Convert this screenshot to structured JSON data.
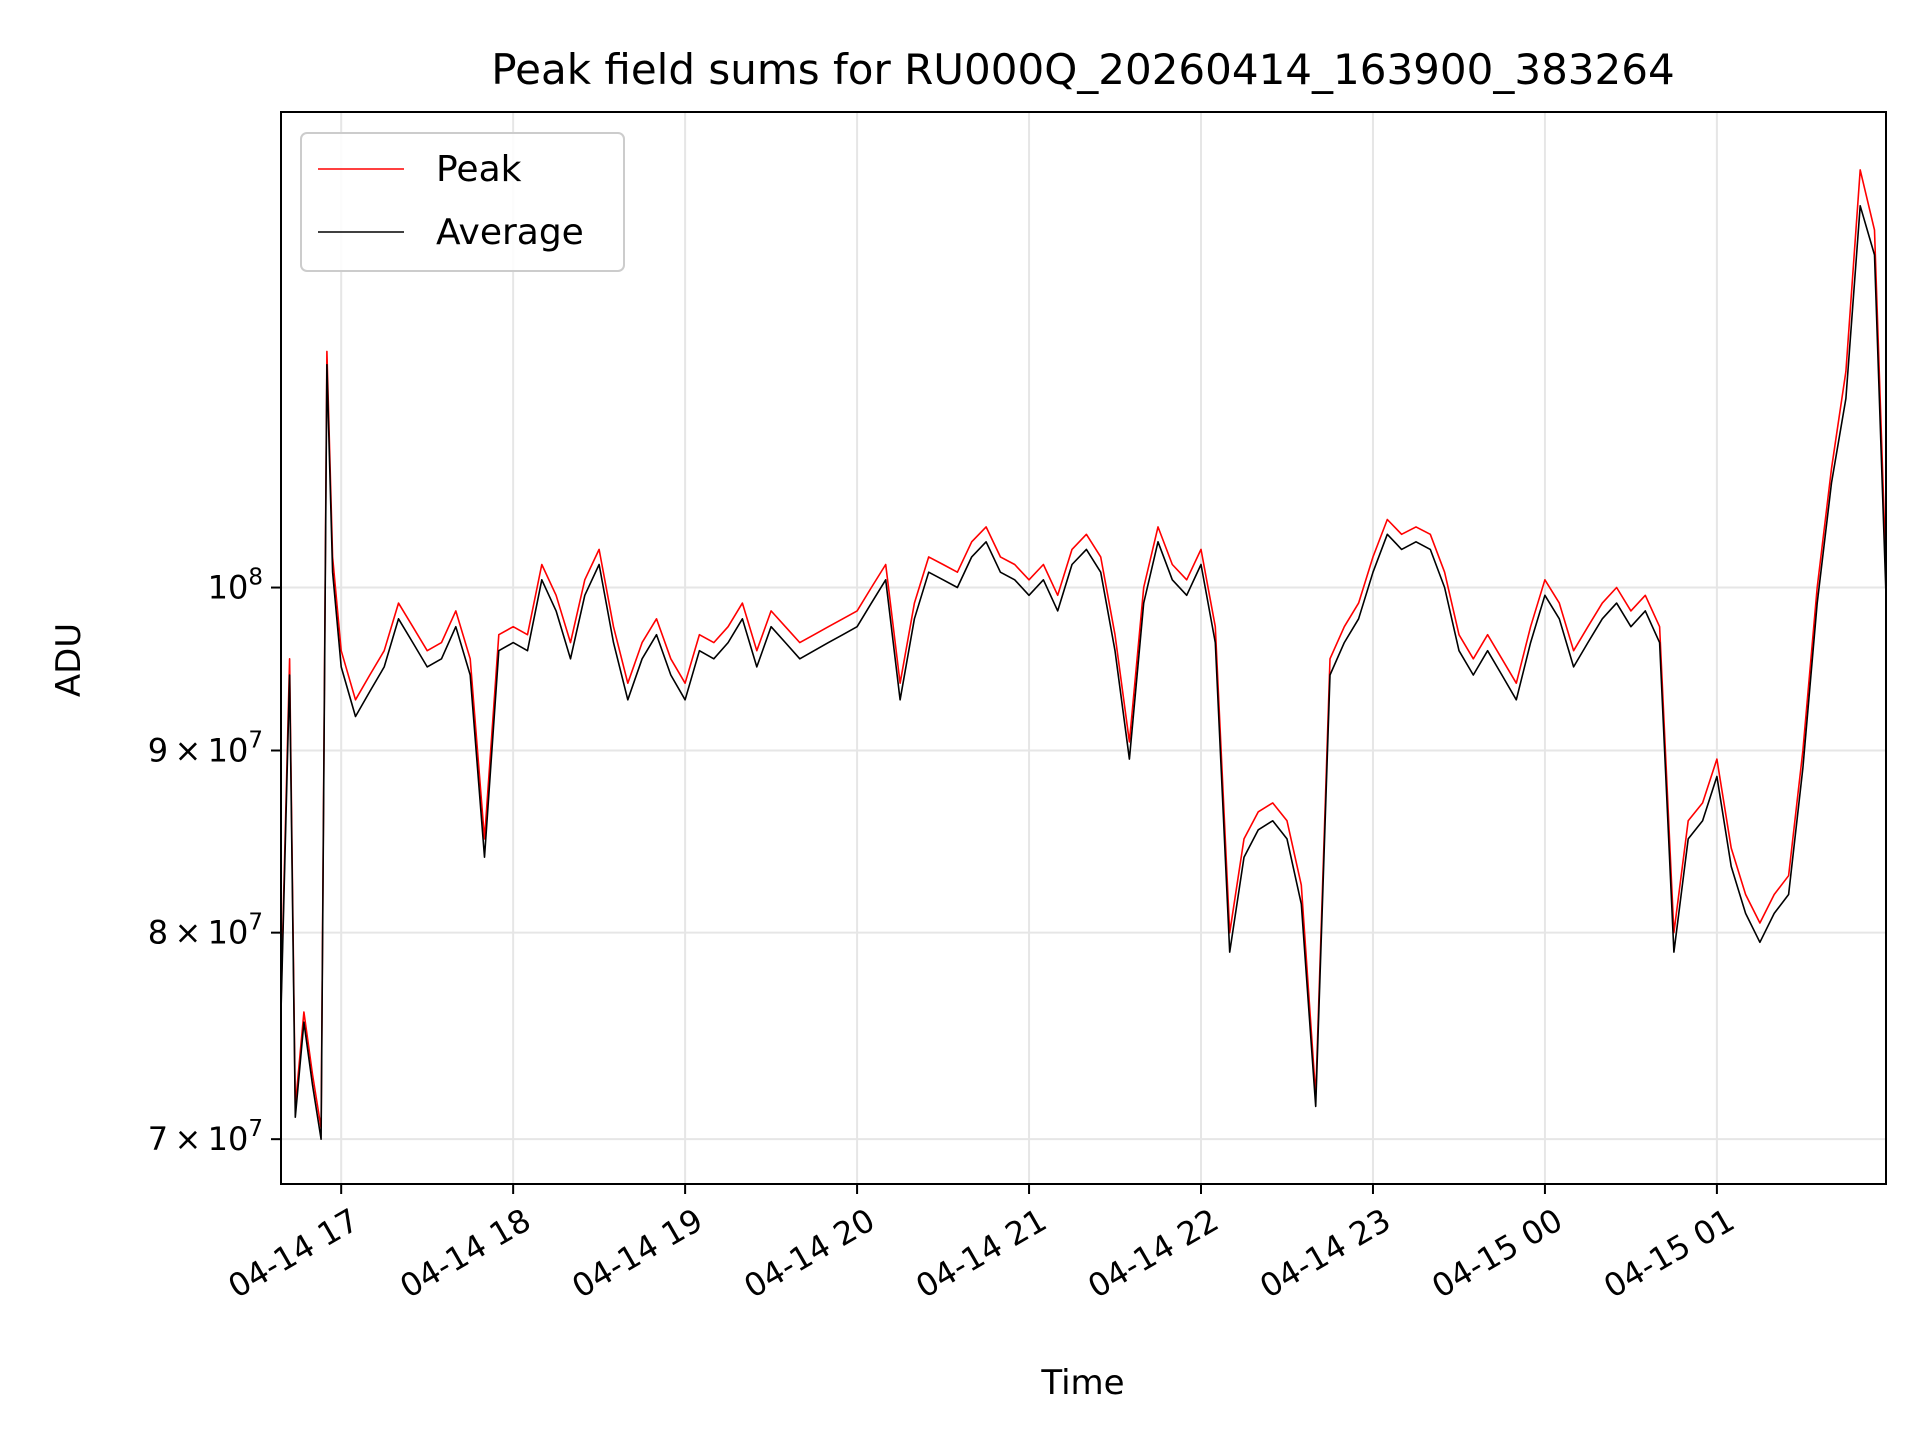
{
  "chart_data": {
    "type": "line",
    "title": "Peak field sums for RU000Q_20260414_163900_383264",
    "xlabel": "Time",
    "ylabel": "ADU",
    "y_scale": "log",
    "ylim": [
      68000000,
      136000000
    ],
    "xlim": [
      "2026-04-14 16:39",
      "2026-04-15 01:59"
    ],
    "grid": true,
    "legend_position": "top-left",
    "x_ticks": [
      {
        "t": "2026-04-14 17:00",
        "label": "04-14 17"
      },
      {
        "t": "2026-04-14 18:00",
        "label": "04-14 18"
      },
      {
        "t": "2026-04-14 19:00",
        "label": "04-14 19"
      },
      {
        "t": "2026-04-14 20:00",
        "label": "04-14 20"
      },
      {
        "t": "2026-04-14 21:00",
        "label": "04-14 21"
      },
      {
        "t": "2026-04-14 22:00",
        "label": "04-14 22"
      },
      {
        "t": "2026-04-14 23:00",
        "label": "04-14 23"
      },
      {
        "t": "2026-04-15 00:00",
        "label": "04-15 00"
      },
      {
        "t": "2026-04-15 01:00",
        "label": "04-15 01"
      }
    ],
    "y_ticks": [
      {
        "value": 70000000,
        "base": "7",
        "exp": "7"
      },
      {
        "value": 80000000,
        "base": "8",
        "exp": "7"
      },
      {
        "value": 90000000,
        "base": "9",
        "exp": "7"
      },
      {
        "value": 100000000,
        "base": "",
        "exp": "8"
      }
    ],
    "x": [
      "2026-04-14 16:39",
      "2026-04-14 16:42",
      "2026-04-14 16:44",
      "2026-04-14 16:47",
      "2026-04-14 16:50",
      "2026-04-14 16:53",
      "2026-04-14 16:55",
      "2026-04-14 16:57",
      "2026-04-14 17:00",
      "2026-04-14 17:05",
      "2026-04-14 17:10",
      "2026-04-14 17:15",
      "2026-04-14 17:20",
      "2026-04-14 17:25",
      "2026-04-14 17:30",
      "2026-04-14 17:35",
      "2026-04-14 17:40",
      "2026-04-14 17:45",
      "2026-04-14 17:50",
      "2026-04-14 17:55",
      "2026-04-14 18:00",
      "2026-04-14 18:05",
      "2026-04-14 18:10",
      "2026-04-14 18:15",
      "2026-04-14 18:20",
      "2026-04-14 18:25",
      "2026-04-14 18:30",
      "2026-04-14 18:35",
      "2026-04-14 18:40",
      "2026-04-14 18:45",
      "2026-04-14 18:50",
      "2026-04-14 18:55",
      "2026-04-14 19:00",
      "2026-04-14 19:05",
      "2026-04-14 19:10",
      "2026-04-14 19:15",
      "2026-04-14 19:20",
      "2026-04-14 19:25",
      "2026-04-14 19:30",
      "2026-04-14 19:35",
      "2026-04-14 19:40",
      "2026-04-14 19:45",
      "2026-04-14 19:50",
      "2026-04-14 19:55",
      "2026-04-14 20:00",
      "2026-04-14 20:05",
      "2026-04-14 20:10",
      "2026-04-14 20:15",
      "2026-04-14 20:20",
      "2026-04-14 20:25",
      "2026-04-14 20:30",
      "2026-04-14 20:35",
      "2026-04-14 20:40",
      "2026-04-14 20:45",
      "2026-04-14 20:50",
      "2026-04-14 20:55",
      "2026-04-14 21:00",
      "2026-04-14 21:05",
      "2026-04-14 21:10",
      "2026-04-14 21:15",
      "2026-04-14 21:20",
      "2026-04-14 21:25",
      "2026-04-14 21:30",
      "2026-04-14 21:35",
      "2026-04-14 21:40",
      "2026-04-14 21:45",
      "2026-04-14 21:50",
      "2026-04-14 21:55",
      "2026-04-14 22:00",
      "2026-04-14 22:05",
      "2026-04-14 22:10",
      "2026-04-14 22:15",
      "2026-04-14 22:20",
      "2026-04-14 22:25",
      "2026-04-14 22:30",
      "2026-04-14 22:35",
      "2026-04-14 22:40",
      "2026-04-14 22:45",
      "2026-04-14 22:50",
      "2026-04-14 22:55",
      "2026-04-14 23:00",
      "2026-04-14 23:05",
      "2026-04-14 23:10",
      "2026-04-14 23:15",
      "2026-04-14 23:20",
      "2026-04-14 23:25",
      "2026-04-14 23:30",
      "2026-04-14 23:35",
      "2026-04-14 23:40",
      "2026-04-14 23:45",
      "2026-04-14 23:50",
      "2026-04-14 23:55",
      "2026-04-15 00:00",
      "2026-04-15 00:05",
      "2026-04-15 00:10",
      "2026-04-15 00:15",
      "2026-04-15 00:20",
      "2026-04-15 00:25",
      "2026-04-15 00:30",
      "2026-04-15 00:35",
      "2026-04-15 00:40",
      "2026-04-15 00:45",
      "2026-04-15 00:50",
      "2026-04-15 00:55",
      "2026-04-15 01:00",
      "2026-04-15 01:05",
      "2026-04-15 01:10",
      "2026-04-15 01:15",
      "2026-04-15 01:20",
      "2026-04-15 01:25",
      "2026-04-15 01:30",
      "2026-04-15 01:35",
      "2026-04-15 01:40",
      "2026-04-15 01:45",
      "2026-04-15 01:50",
      "2026-04-15 01:55",
      "2026-04-15 01:59"
    ],
    "series": [
      {
        "name": "Peak",
        "color": "#ff0000",
        "values": [
          76500000,
          95500000,
          71500000,
          76000000,
          73000000,
          70500000,
          116500000,
          102000000,
          96000000,
          93000000,
          94500000,
          96000000,
          99000000,
          97500000,
          96000000,
          96500000,
          98500000,
          95500000,
          85000000,
          97000000,
          97500000,
          97000000,
          101500000,
          99500000,
          96500000,
          100500000,
          102500000,
          97500000,
          94000000,
          96500000,
          98000000,
          95500000,
          94000000,
          97000000,
          96500000,
          97500000,
          99000000,
          96000000,
          98500000,
          97500000,
          96500000,
          97000000,
          97500000,
          98000000,
          98500000,
          100000000,
          101500000,
          94000000,
          99000000,
          102000000,
          101500000,
          101000000,
          103000000,
          104000000,
          102000000,
          101500000,
          100500000,
          101500000,
          99500000,
          102500000,
          103500000,
          102000000,
          97000000,
          90500000,
          100000000,
          104000000,
          101500000,
          100500000,
          102500000,
          97500000,
          80000000,
          85000000,
          86500000,
          87000000,
          86000000,
          82500000,
          72000000,
          95500000,
          97500000,
          99000000,
          102000000,
          104500000,
          103500000,
          104000000,
          103500000,
          101000000,
          97000000,
          95500000,
          97000000,
          95500000,
          94000000,
          97500000,
          100500000,
          99000000,
          96000000,
          97500000,
          99000000,
          100000000,
          98500000,
          99500000,
          97500000,
          80000000,
          86000000,
          87000000,
          89500000,
          84500000,
          82000000,
          80500000,
          82000000,
          83000000,
          90000000,
          100000000,
          108000000,
          115000000,
          131000000,
          126000000,
          101000000
        ]
      },
      {
        "name": "Average",
        "color": "#000000",
        "values": [
          76000000,
          94500000,
          71000000,
          75500000,
          72500000,
          70000000,
          115500000,
          101000000,
          95000000,
          92000000,
          93500000,
          95000000,
          98000000,
          96500000,
          95000000,
          95500000,
          97500000,
          94500000,
          84000000,
          96000000,
          96500000,
          96000000,
          100500000,
          98500000,
          95500000,
          99500000,
          101500000,
          96500000,
          93000000,
          95500000,
          97000000,
          94500000,
          93000000,
          96000000,
          95500000,
          96500000,
          98000000,
          95000000,
          97500000,
          96500000,
          95500000,
          96000000,
          96500000,
          97000000,
          97500000,
          99000000,
          100500000,
          93000000,
          98000000,
          101000000,
          100500000,
          100000000,
          102000000,
          103000000,
          101000000,
          100500000,
          99500000,
          100500000,
          98500000,
          101500000,
          102500000,
          101000000,
          96000000,
          89500000,
          99000000,
          103000000,
          100500000,
          99500000,
          101500000,
          96500000,
          79000000,
          84000000,
          85500000,
          86000000,
          85000000,
          81500000,
          71500000,
          94500000,
          96500000,
          98000000,
          101000000,
          103500000,
          102500000,
          103000000,
          102500000,
          100000000,
          96000000,
          94500000,
          96000000,
          94500000,
          93000000,
          96500000,
          99500000,
          98000000,
          95000000,
          96500000,
          98000000,
          99000000,
          97500000,
          98500000,
          96500000,
          79000000,
          85000000,
          86000000,
          88500000,
          83500000,
          81000000,
          79500000,
          81000000,
          82000000,
          89000000,
          99000000,
          107000000,
          113000000,
          128000000,
          124000000,
          99500000
        ]
      }
    ]
  }
}
